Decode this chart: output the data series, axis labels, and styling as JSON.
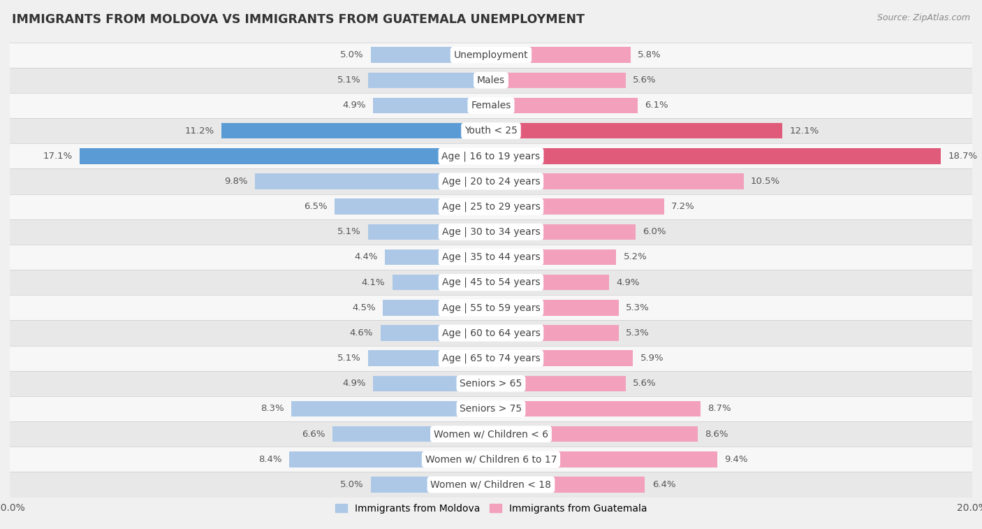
{
  "title": "IMMIGRANTS FROM MOLDOVA VS IMMIGRANTS FROM GUATEMALA UNEMPLOYMENT",
  "source": "Source: ZipAtlas.com",
  "categories": [
    "Unemployment",
    "Males",
    "Females",
    "Youth < 25",
    "Age | 16 to 19 years",
    "Age | 20 to 24 years",
    "Age | 25 to 29 years",
    "Age | 30 to 34 years",
    "Age | 35 to 44 years",
    "Age | 45 to 54 years",
    "Age | 55 to 59 years",
    "Age | 60 to 64 years",
    "Age | 65 to 74 years",
    "Seniors > 65",
    "Seniors > 75",
    "Women w/ Children < 6",
    "Women w/ Children 6 to 17",
    "Women w/ Children < 18"
  ],
  "moldova_values": [
    5.0,
    5.1,
    4.9,
    11.2,
    17.1,
    9.8,
    6.5,
    5.1,
    4.4,
    4.1,
    4.5,
    4.6,
    5.1,
    4.9,
    8.3,
    6.6,
    8.4,
    5.0
  ],
  "guatemala_values": [
    5.8,
    5.6,
    6.1,
    12.1,
    18.7,
    10.5,
    7.2,
    6.0,
    5.2,
    4.9,
    5.3,
    5.3,
    5.9,
    5.6,
    8.7,
    8.6,
    9.4,
    6.4
  ],
  "moldova_color": "#adc8e6",
  "guatemala_color": "#f2a0bb",
  "moldova_highlight_color": "#5b9bd5",
  "guatemala_highlight_color": "#e05a7a",
  "highlight_rows": [
    3,
    4
  ],
  "bar_height": 0.62,
  "xlim": 20.0,
  "bg_color": "#f0f0f0",
  "row_bg_light": "#f7f7f7",
  "row_bg_dark": "#e8e8e8",
  "legend_moldova": "Immigrants from Moldova",
  "legend_guatemala": "Immigrants from Guatemala",
  "title_fontsize": 12.5,
  "label_fontsize": 10,
  "value_fontsize": 9.5,
  "source_fontsize": 9
}
